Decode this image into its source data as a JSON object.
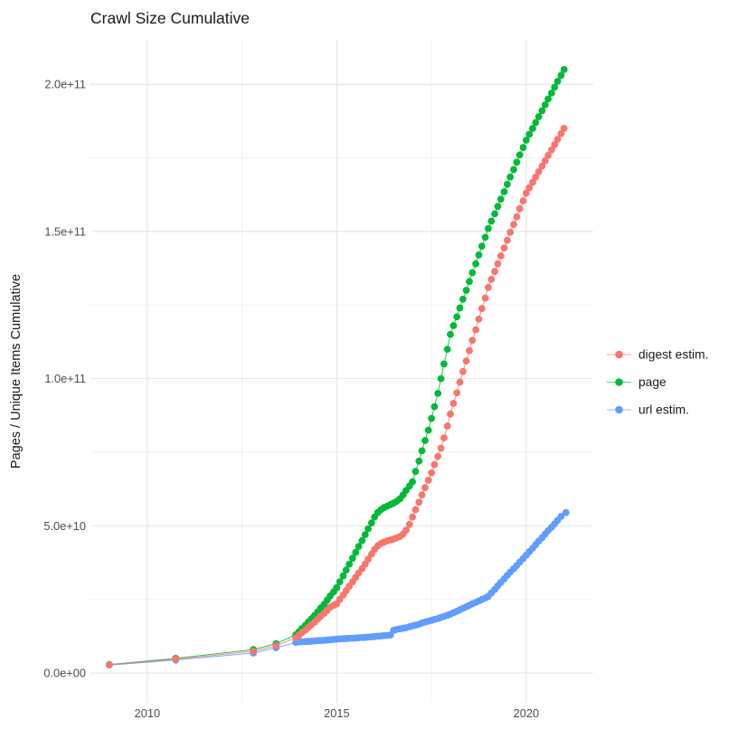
{
  "page_title": "Crawl Size Cumulative",
  "chart_data": {
    "type": "scatter",
    "title": "Crawl Size Cumulative",
    "xlabel": "",
    "ylabel": "Pages / Unique Items Cumulative",
    "value_unit": "counts; point values stored in units of 1e9 (billions)",
    "grid": "major and minor light-gray gridlines, no axis lines, white background",
    "xlim": [
      2008.5,
      2021.77
    ],
    "ylim_e9": [
      -10.1,
      215.1
    ],
    "x_ticks": {
      "years": [
        2010,
        2015,
        2020
      ],
      "labels": [
        "2010",
        "2015",
        "2020"
      ]
    },
    "x_minor_years": [
      2012.5,
      2017.5
    ],
    "y_ticks": {
      "values_e9": [
        0,
        50,
        100,
        150,
        200
      ],
      "labels": [
        "0.0e+00",
        "5.0e+10",
        "1.0e+11",
        "1.5e+11",
        "2.0e+11"
      ]
    },
    "y_minor_e9": [
      25,
      75,
      125,
      175
    ],
    "legend": {
      "position": "right",
      "entries": [
        {
          "label": "digest estim.",
          "color": "#F8766D"
        },
        {
          "label": "page",
          "color": "#00BA38"
        },
        {
          "label": "url estim.",
          "color": "#619CFF"
        }
      ]
    },
    "series": [
      {
        "name": "page",
        "color": "#00BA38",
        "points_year_value_e9": [
          [
            2009.0,
            2.9
          ],
          [
            2010.75,
            5.0
          ],
          [
            2012.8,
            8.0
          ],
          [
            2013.4,
            10.0
          ],
          [
            2013.92,
            13.0
          ],
          [
            2014.0,
            14.0
          ],
          [
            2014.08,
            15.1
          ],
          [
            2014.17,
            16.2
          ],
          [
            2014.25,
            17.3
          ],
          [
            2014.33,
            18.4
          ],
          [
            2014.42,
            19.6
          ],
          [
            2014.5,
            20.8
          ],
          [
            2014.58,
            22.1
          ],
          [
            2014.67,
            23.4
          ],
          [
            2014.75,
            24.8
          ],
          [
            2014.83,
            26.2
          ],
          [
            2014.92,
            27.6
          ],
          [
            2015.0,
            29.0
          ],
          [
            2015.08,
            31.0
          ],
          [
            2015.17,
            33.0
          ],
          [
            2015.25,
            35.0
          ],
          [
            2015.33,
            37.0
          ],
          [
            2015.42,
            39.0
          ],
          [
            2015.5,
            41.0
          ],
          [
            2015.58,
            43.0
          ],
          [
            2015.67,
            45.0
          ],
          [
            2015.75,
            47.0
          ],
          [
            2015.83,
            49.0
          ],
          [
            2015.92,
            51.0
          ],
          [
            2016.0,
            53.0
          ],
          [
            2016.08,
            54.5
          ],
          [
            2016.17,
            55.5
          ],
          [
            2016.25,
            56.2
          ],
          [
            2016.33,
            56.7
          ],
          [
            2016.42,
            57.2
          ],
          [
            2016.5,
            57.7
          ],
          [
            2016.58,
            58.3
          ],
          [
            2016.67,
            59.2
          ],
          [
            2016.75,
            60.5
          ],
          [
            2016.83,
            62.0
          ],
          [
            2016.92,
            63.5
          ],
          [
            2017.0,
            65.0
          ],
          [
            2017.08,
            68.5
          ],
          [
            2017.17,
            72.0
          ],
          [
            2017.25,
            75.5
          ],
          [
            2017.33,
            79.0
          ],
          [
            2017.42,
            82.5
          ],
          [
            2017.5,
            86.5
          ],
          [
            2017.58,
            90.5
          ],
          [
            2017.67,
            95.0
          ],
          [
            2017.75,
            100.0
          ],
          [
            2017.83,
            105.0
          ],
          [
            2017.92,
            110.0
          ],
          [
            2018.0,
            115.0
          ],
          [
            2018.08,
            118.0
          ],
          [
            2018.17,
            121.0
          ],
          [
            2018.25,
            124.0
          ],
          [
            2018.33,
            127.0
          ],
          [
            2018.42,
            130.0
          ],
          [
            2018.5,
            133.0
          ],
          [
            2018.58,
            136.0
          ],
          [
            2018.67,
            139.0
          ],
          [
            2018.75,
            142.0
          ],
          [
            2018.83,
            145.0
          ],
          [
            2018.92,
            148.0
          ],
          [
            2019.0,
            151.0
          ],
          [
            2019.08,
            153.5
          ],
          [
            2019.17,
            156.0
          ],
          [
            2019.25,
            158.5
          ],
          [
            2019.33,
            161.0
          ],
          [
            2019.42,
            163.5
          ],
          [
            2019.5,
            166.0
          ],
          [
            2019.58,
            168.5
          ],
          [
            2019.67,
            171.0
          ],
          [
            2019.75,
            173.5
          ],
          [
            2019.83,
            176.0
          ],
          [
            2019.92,
            178.5
          ],
          [
            2020.0,
            181.0
          ],
          [
            2020.08,
            183.0
          ],
          [
            2020.17,
            185.0
          ],
          [
            2020.25,
            187.0
          ],
          [
            2020.33,
            189.0
          ],
          [
            2020.42,
            191.0
          ],
          [
            2020.5,
            193.0
          ],
          [
            2020.58,
            195.0
          ],
          [
            2020.67,
            197.0
          ],
          [
            2020.75,
            199.0
          ],
          [
            2020.83,
            201.0
          ],
          [
            2020.92,
            203.0
          ],
          [
            2021.0,
            205.0
          ]
        ]
      },
      {
        "name": "url estim.",
        "color": "#619CFF",
        "points_year_value_e9": [
          [
            2009.0,
            2.7
          ],
          [
            2010.75,
            4.4
          ],
          [
            2012.8,
            6.8
          ],
          [
            2013.4,
            8.6
          ],
          [
            2013.92,
            10.4
          ],
          [
            2014.0,
            10.6
          ],
          [
            2014.08,
            10.65
          ],
          [
            2014.17,
            10.7
          ],
          [
            2014.25,
            10.75
          ],
          [
            2014.33,
            10.8
          ],
          [
            2014.42,
            10.9
          ],
          [
            2014.5,
            11.0
          ],
          [
            2014.58,
            11.05
          ],
          [
            2014.67,
            11.1
          ],
          [
            2014.75,
            11.2
          ],
          [
            2014.83,
            11.3
          ],
          [
            2014.92,
            11.4
          ],
          [
            2015.0,
            11.5
          ],
          [
            2015.08,
            11.6
          ],
          [
            2015.17,
            11.65
          ],
          [
            2015.25,
            11.7
          ],
          [
            2015.33,
            11.8
          ],
          [
            2015.42,
            11.85
          ],
          [
            2015.5,
            11.9
          ],
          [
            2015.58,
            12.0
          ],
          [
            2015.67,
            12.05
          ],
          [
            2015.75,
            12.1
          ],
          [
            2015.83,
            12.2
          ],
          [
            2015.92,
            12.3
          ],
          [
            2016.0,
            12.4
          ],
          [
            2016.08,
            12.5
          ],
          [
            2016.17,
            12.6
          ],
          [
            2016.25,
            12.7
          ],
          [
            2016.33,
            12.8
          ],
          [
            2016.42,
            12.9
          ],
          [
            2016.5,
            14.5
          ],
          [
            2016.58,
            14.8
          ],
          [
            2016.67,
            15.0
          ],
          [
            2016.75,
            15.2
          ],
          [
            2016.83,
            15.4
          ],
          [
            2016.92,
            15.7
          ],
          [
            2017.0,
            16.0
          ],
          [
            2017.08,
            16.3
          ],
          [
            2017.17,
            16.6
          ],
          [
            2017.25,
            17.0
          ],
          [
            2017.33,
            17.3
          ],
          [
            2017.42,
            17.6
          ],
          [
            2017.5,
            17.9
          ],
          [
            2017.58,
            18.2
          ],
          [
            2017.67,
            18.5
          ],
          [
            2017.75,
            18.9
          ],
          [
            2017.83,
            19.2
          ],
          [
            2017.92,
            19.6
          ],
          [
            2018.0,
            20.0
          ],
          [
            2018.08,
            20.5
          ],
          [
            2018.17,
            21.0
          ],
          [
            2018.25,
            21.5
          ],
          [
            2018.33,
            22.0
          ],
          [
            2018.42,
            22.5
          ],
          [
            2018.5,
            23.0
          ],
          [
            2018.58,
            23.5
          ],
          [
            2018.67,
            24.0
          ],
          [
            2018.75,
            24.5
          ],
          [
            2018.83,
            25.0
          ],
          [
            2018.92,
            25.5
          ],
          [
            2019.0,
            26.0
          ],
          [
            2019.08,
            27.2
          ],
          [
            2019.17,
            28.4
          ],
          [
            2019.25,
            29.6
          ],
          [
            2019.33,
            30.8
          ],
          [
            2019.42,
            32.0
          ],
          [
            2019.5,
            33.2
          ],
          [
            2019.58,
            34.3
          ],
          [
            2019.67,
            35.4
          ],
          [
            2019.75,
            36.5
          ],
          [
            2019.83,
            37.7
          ],
          [
            2019.92,
            38.9
          ],
          [
            2020.0,
            40.0
          ],
          [
            2020.08,
            41.2
          ],
          [
            2020.17,
            42.4
          ],
          [
            2020.25,
            43.6
          ],
          [
            2020.33,
            44.8
          ],
          [
            2020.42,
            46.0
          ],
          [
            2020.5,
            47.2
          ],
          [
            2020.58,
            48.4
          ],
          [
            2020.67,
            49.5
          ],
          [
            2020.75,
            50.7
          ],
          [
            2020.83,
            51.9
          ],
          [
            2020.92,
            53.2
          ],
          [
            2021.05,
            54.5
          ]
        ]
      },
      {
        "name": "digest estim.",
        "color": "#F8766D",
        "points_year_value_e9": [
          [
            2009.0,
            2.8
          ],
          [
            2010.75,
            4.7
          ],
          [
            2012.8,
            7.4
          ],
          [
            2013.4,
            9.3
          ],
          [
            2013.92,
            12.0
          ],
          [
            2014.0,
            12.8
          ],
          [
            2014.08,
            13.7
          ],
          [
            2014.17,
            14.6
          ],
          [
            2014.25,
            15.5
          ],
          [
            2014.33,
            16.4
          ],
          [
            2014.42,
            17.3
          ],
          [
            2014.5,
            18.3
          ],
          [
            2014.58,
            19.3
          ],
          [
            2014.67,
            20.3
          ],
          [
            2014.75,
            21.3
          ],
          [
            2014.83,
            22.4
          ],
          [
            2014.92,
            23.0
          ],
          [
            2015.0,
            23.5
          ],
          [
            2015.08,
            25.0
          ],
          [
            2015.17,
            26.5
          ],
          [
            2015.25,
            28.0
          ],
          [
            2015.33,
            29.5
          ],
          [
            2015.42,
            31.0
          ],
          [
            2015.5,
            32.5
          ],
          [
            2015.58,
            34.0
          ],
          [
            2015.67,
            35.5
          ],
          [
            2015.75,
            37.0
          ],
          [
            2015.83,
            38.7
          ],
          [
            2015.92,
            40.4
          ],
          [
            2016.0,
            42.0
          ],
          [
            2016.08,
            43.2
          ],
          [
            2016.17,
            44.0
          ],
          [
            2016.25,
            44.5
          ],
          [
            2016.33,
            44.9
          ],
          [
            2016.42,
            45.2
          ],
          [
            2016.5,
            45.5
          ],
          [
            2016.58,
            45.9
          ],
          [
            2016.67,
            46.4
          ],
          [
            2016.75,
            47.2
          ],
          [
            2016.83,
            48.5
          ],
          [
            2016.92,
            50.5
          ],
          [
            2017.0,
            53.0
          ],
          [
            2017.08,
            55.5
          ],
          [
            2017.17,
            58.0
          ],
          [
            2017.25,
            60.5
          ],
          [
            2017.33,
            63.0
          ],
          [
            2017.42,
            65.5
          ],
          [
            2017.5,
            68.0
          ],
          [
            2017.58,
            70.8
          ],
          [
            2017.67,
            73.6
          ],
          [
            2017.75,
            76.4
          ],
          [
            2017.83,
            79.9
          ],
          [
            2017.92,
            83.9
          ],
          [
            2018.0,
            88.0
          ],
          [
            2018.08,
            91.6
          ],
          [
            2018.17,
            95.2
          ],
          [
            2018.25,
            98.8
          ],
          [
            2018.33,
            102.4
          ],
          [
            2018.42,
            106.0
          ],
          [
            2018.5,
            109.5
          ],
          [
            2018.58,
            113.0
          ],
          [
            2018.67,
            116.6
          ],
          [
            2018.75,
            120.2
          ],
          [
            2018.83,
            123.8
          ],
          [
            2018.92,
            127.4
          ],
          [
            2019.0,
            131.0
          ],
          [
            2019.08,
            133.7
          ],
          [
            2019.17,
            136.4
          ],
          [
            2019.25,
            139.0
          ],
          [
            2019.33,
            141.7
          ],
          [
            2019.42,
            144.4
          ],
          [
            2019.5,
            147.0
          ],
          [
            2019.58,
            149.7
          ],
          [
            2019.67,
            152.4
          ],
          [
            2019.75,
            155.0
          ],
          [
            2019.83,
            157.7
          ],
          [
            2019.92,
            160.4
          ],
          [
            2020.0,
            163.0
          ],
          [
            2020.08,
            164.8
          ],
          [
            2020.17,
            166.7
          ],
          [
            2020.25,
            168.5
          ],
          [
            2020.33,
            170.3
          ],
          [
            2020.42,
            172.2
          ],
          [
            2020.5,
            174.0
          ],
          [
            2020.58,
            175.8
          ],
          [
            2020.67,
            177.7
          ],
          [
            2020.75,
            179.5
          ],
          [
            2020.83,
            181.3
          ],
          [
            2020.92,
            183.2
          ],
          [
            2021.0,
            185.0
          ]
        ]
      }
    ],
    "colors": {
      "background": "#ffffff",
      "grid_major": "#e4e4e4",
      "grid_minor": "#ededed",
      "tick_label": "#4d4d4d",
      "text": "#1a1a1a"
    }
  }
}
